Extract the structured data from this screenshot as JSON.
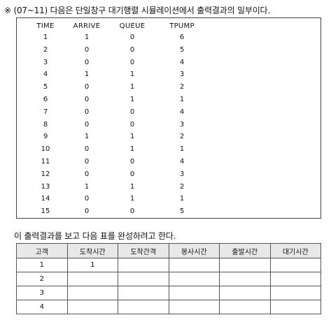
{
  "heading": "※ (07~11) 다음은 단일창구 대기행렬 시뮬레이션에서 출력결과의 일부이다.",
  "output": {
    "columns": [
      "TIME",
      "ARRIVE",
      "QUEUE",
      "TPUMP"
    ],
    "rows": [
      [
        "1",
        "1",
        "0",
        "6"
      ],
      [
        "2",
        "0",
        "0",
        "5"
      ],
      [
        "3",
        "0",
        "0",
        "4"
      ],
      [
        "4",
        "1",
        "1",
        "3"
      ],
      [
        "5",
        "0",
        "1",
        "2"
      ],
      [
        "6",
        "0",
        "1",
        "1"
      ],
      [
        "7",
        "0",
        "0",
        "4"
      ],
      [
        "8",
        "0",
        "0",
        "3"
      ],
      [
        "9",
        "1",
        "1",
        "2"
      ],
      [
        "10",
        "0",
        "1",
        "1"
      ],
      [
        "11",
        "0",
        "0",
        "4"
      ],
      [
        "12",
        "0",
        "0",
        "3"
      ],
      [
        "13",
        "1",
        "1",
        "2"
      ],
      [
        "14",
        "0",
        "1",
        "1"
      ],
      [
        "15",
        "0",
        "0",
        "5"
      ]
    ]
  },
  "instruction": "이 출력결과를 보고 다음 표를 완성하려고 한다.",
  "answer_table": {
    "headers": [
      "고객",
      "도착시간",
      "도착간격",
      "봉사시간",
      "출발시간",
      "대기시간"
    ],
    "rows": [
      [
        "1",
        "1",
        "",
        "",
        "",
        ""
      ],
      [
        "2",
        "",
        "",
        "",
        "",
        ""
      ],
      [
        "3",
        "",
        "",
        "",
        "",
        ""
      ],
      [
        "4",
        "",
        "",
        "",
        "",
        ""
      ]
    ]
  }
}
